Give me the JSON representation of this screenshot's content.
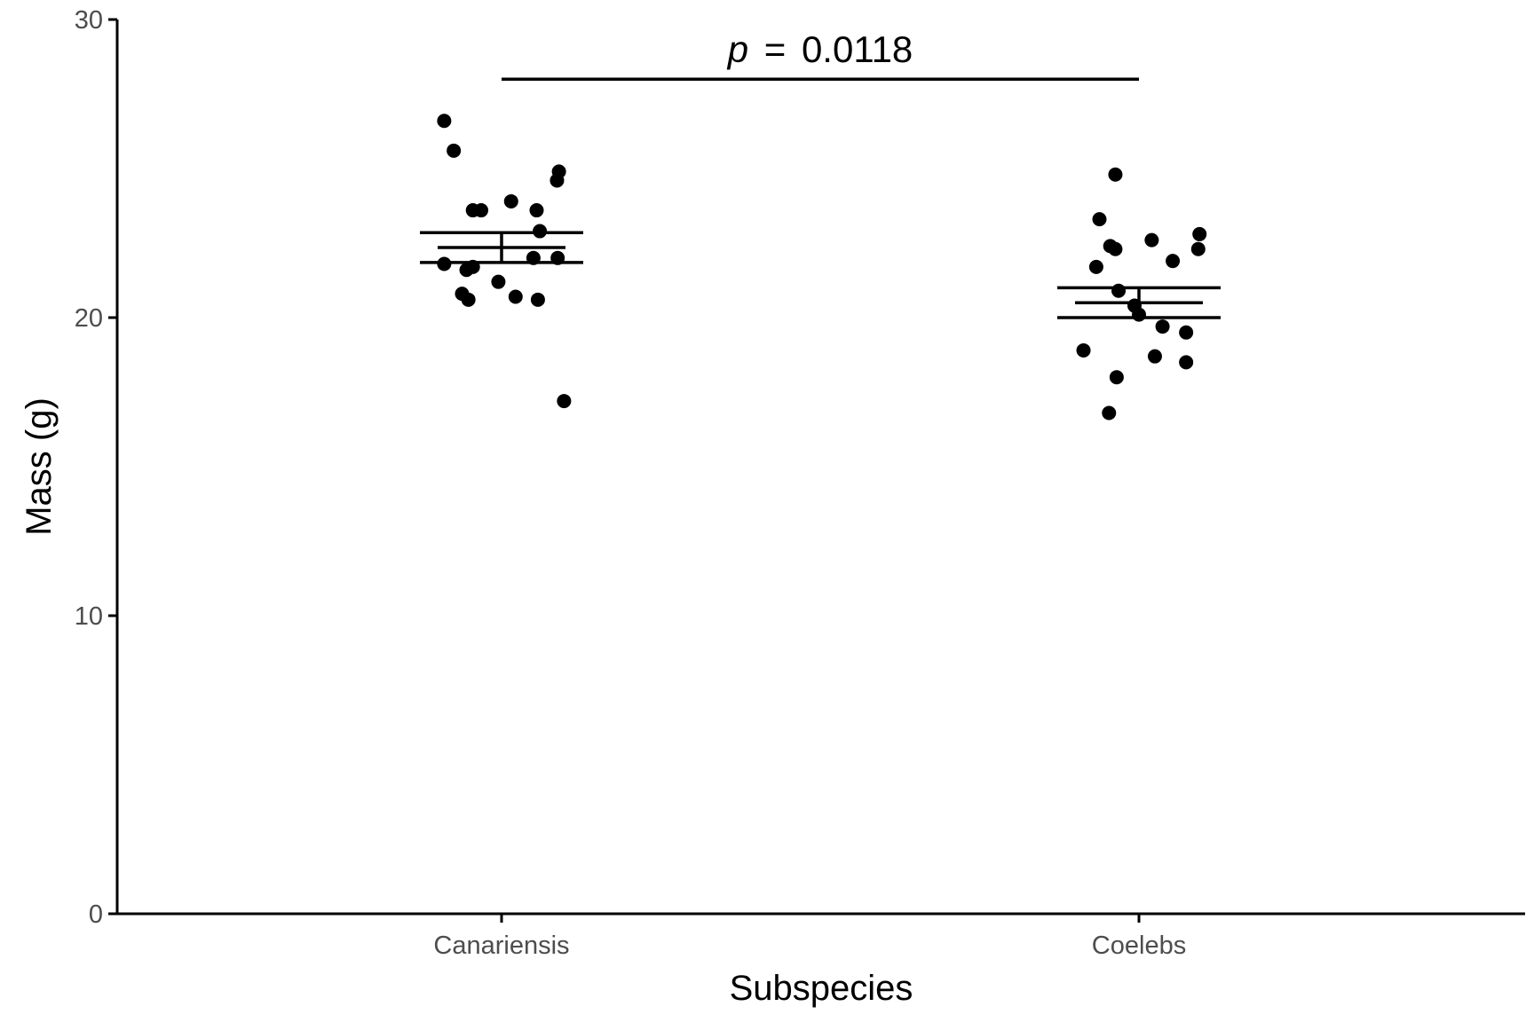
{
  "chart_data": {
    "type": "scatter",
    "xlabel": "Subspecies",
    "ylabel": "Mass (g)",
    "categories": [
      "Canariensis",
      "Coelebs"
    ],
    "ylim": [
      0,
      30
    ],
    "yticks": [
      0,
      10,
      20,
      30
    ],
    "ytick_labels": [
      "0",
      "10",
      "20",
      "30"
    ],
    "grid": false,
    "legend": "none",
    "colors": {
      "points": "#000000",
      "axes": "#000000",
      "tick_labels": "#4d4d4d"
    },
    "groups": [
      {
        "category": "Canariensis",
        "points": [
          {
            "x": -0.09,
            "y": 26.6
          },
          {
            "x": -0.075,
            "y": 25.6
          },
          {
            "x": 0.09,
            "y": 24.9
          },
          {
            "x": 0.087,
            "y": 24.6
          },
          {
            "x": 0.015,
            "y": 23.9
          },
          {
            "x": -0.045,
            "y": 23.6
          },
          {
            "x": -0.032,
            "y": 23.6
          },
          {
            "x": 0.055,
            "y": 23.6
          },
          {
            "x": 0.06,
            "y": 22.9
          },
          {
            "x": -0.09,
            "y": 21.8
          },
          {
            "x": -0.045,
            "y": 21.7
          },
          {
            "x": -0.055,
            "y": 21.6
          },
          {
            "x": 0.05,
            "y": 22.0
          },
          {
            "x": 0.088,
            "y": 22.0
          },
          {
            "x": -0.005,
            "y": 21.2
          },
          {
            "x": -0.062,
            "y": 20.8
          },
          {
            "x": -0.052,
            "y": 20.6
          },
          {
            "x": 0.022,
            "y": 20.7
          },
          {
            "x": 0.057,
            "y": 20.6
          },
          {
            "x": 0.098,
            "y": 17.2
          }
        ],
        "mean": 22.35,
        "se_lower": 21.85,
        "se_upper": 22.85
      },
      {
        "category": "Coelebs",
        "points": [
          {
            "x": -0.037,
            "y": 24.8
          },
          {
            "x": -0.062,
            "y": 23.3
          },
          {
            "x": -0.045,
            "y": 22.4
          },
          {
            "x": -0.037,
            "y": 22.3
          },
          {
            "x": 0.02,
            "y": 22.6
          },
          {
            "x": 0.095,
            "y": 22.8
          },
          {
            "x": 0.093,
            "y": 22.3
          },
          {
            "x": 0.053,
            "y": 21.9
          },
          {
            "x": -0.067,
            "y": 21.7
          },
          {
            "x": -0.032,
            "y": 20.9
          },
          {
            "x": -0.007,
            "y": 20.4
          },
          {
            "x": 0.0,
            "y": 20.1
          },
          {
            "x": 0.037,
            "y": 19.7
          },
          {
            "x": 0.074,
            "y": 19.5
          },
          {
            "x": -0.087,
            "y": 18.9
          },
          {
            "x": 0.025,
            "y": 18.7
          },
          {
            "x": 0.074,
            "y": 18.5
          },
          {
            "x": -0.035,
            "y": 18.0
          },
          {
            "x": -0.047,
            "y": 16.8
          }
        ],
        "mean": 20.5,
        "se_lower": 20.0,
        "se_upper": 21.0
      }
    ],
    "annotation": {
      "from": "Canariensis",
      "to": "Coelebs",
      "y": 28.0,
      "p_symbol": "p",
      "equals": "=",
      "value": "0.0118"
    }
  }
}
